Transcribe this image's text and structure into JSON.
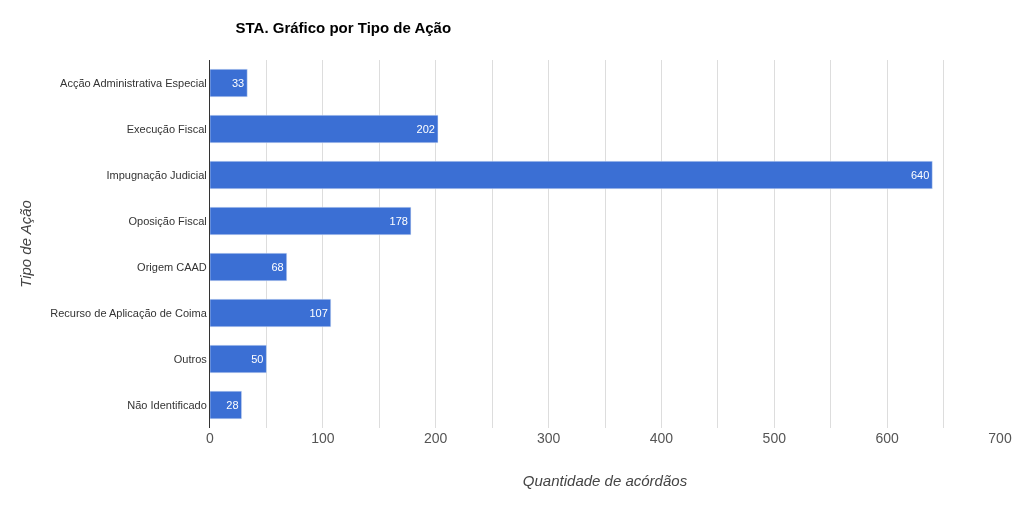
{
  "chart_data": {
    "type": "bar",
    "orientation": "horizontal",
    "title": "STA. Gráfico por Tipo de Ação",
    "xlabel": "Quantidade de acórdãos",
    "ylabel": "Tipo de Ação",
    "categories": [
      "Acção Administrativa Especial",
      "Execução Fiscal",
      "Impugnação Judicial",
      "Oposição Fiscal",
      "Origem CAAD",
      "Recurso de Aplicação de Coima",
      "Outros",
      "Não Identificado"
    ],
    "values": [
      33,
      202,
      640,
      178,
      68,
      107,
      50,
      28
    ],
    "color": "#3b6fd4",
    "xlim": [
      0,
      700
    ],
    "xticks": [
      0,
      {
        "value": 50,
        "label": null
      },
      100,
      {
        "value": 150,
        "label": null
      },
      200,
      {
        "value": 250,
        "label": null
      },
      300,
      {
        "value": 350,
        "label": null
      },
      400,
      {
        "value": 450,
        "label": null
      },
      500,
      {
        "value": 550,
        "label": null
      },
      600,
      {
        "value": 650,
        "label": null
      },
      700
    ],
    "grid": "x",
    "data_labels": true
  }
}
